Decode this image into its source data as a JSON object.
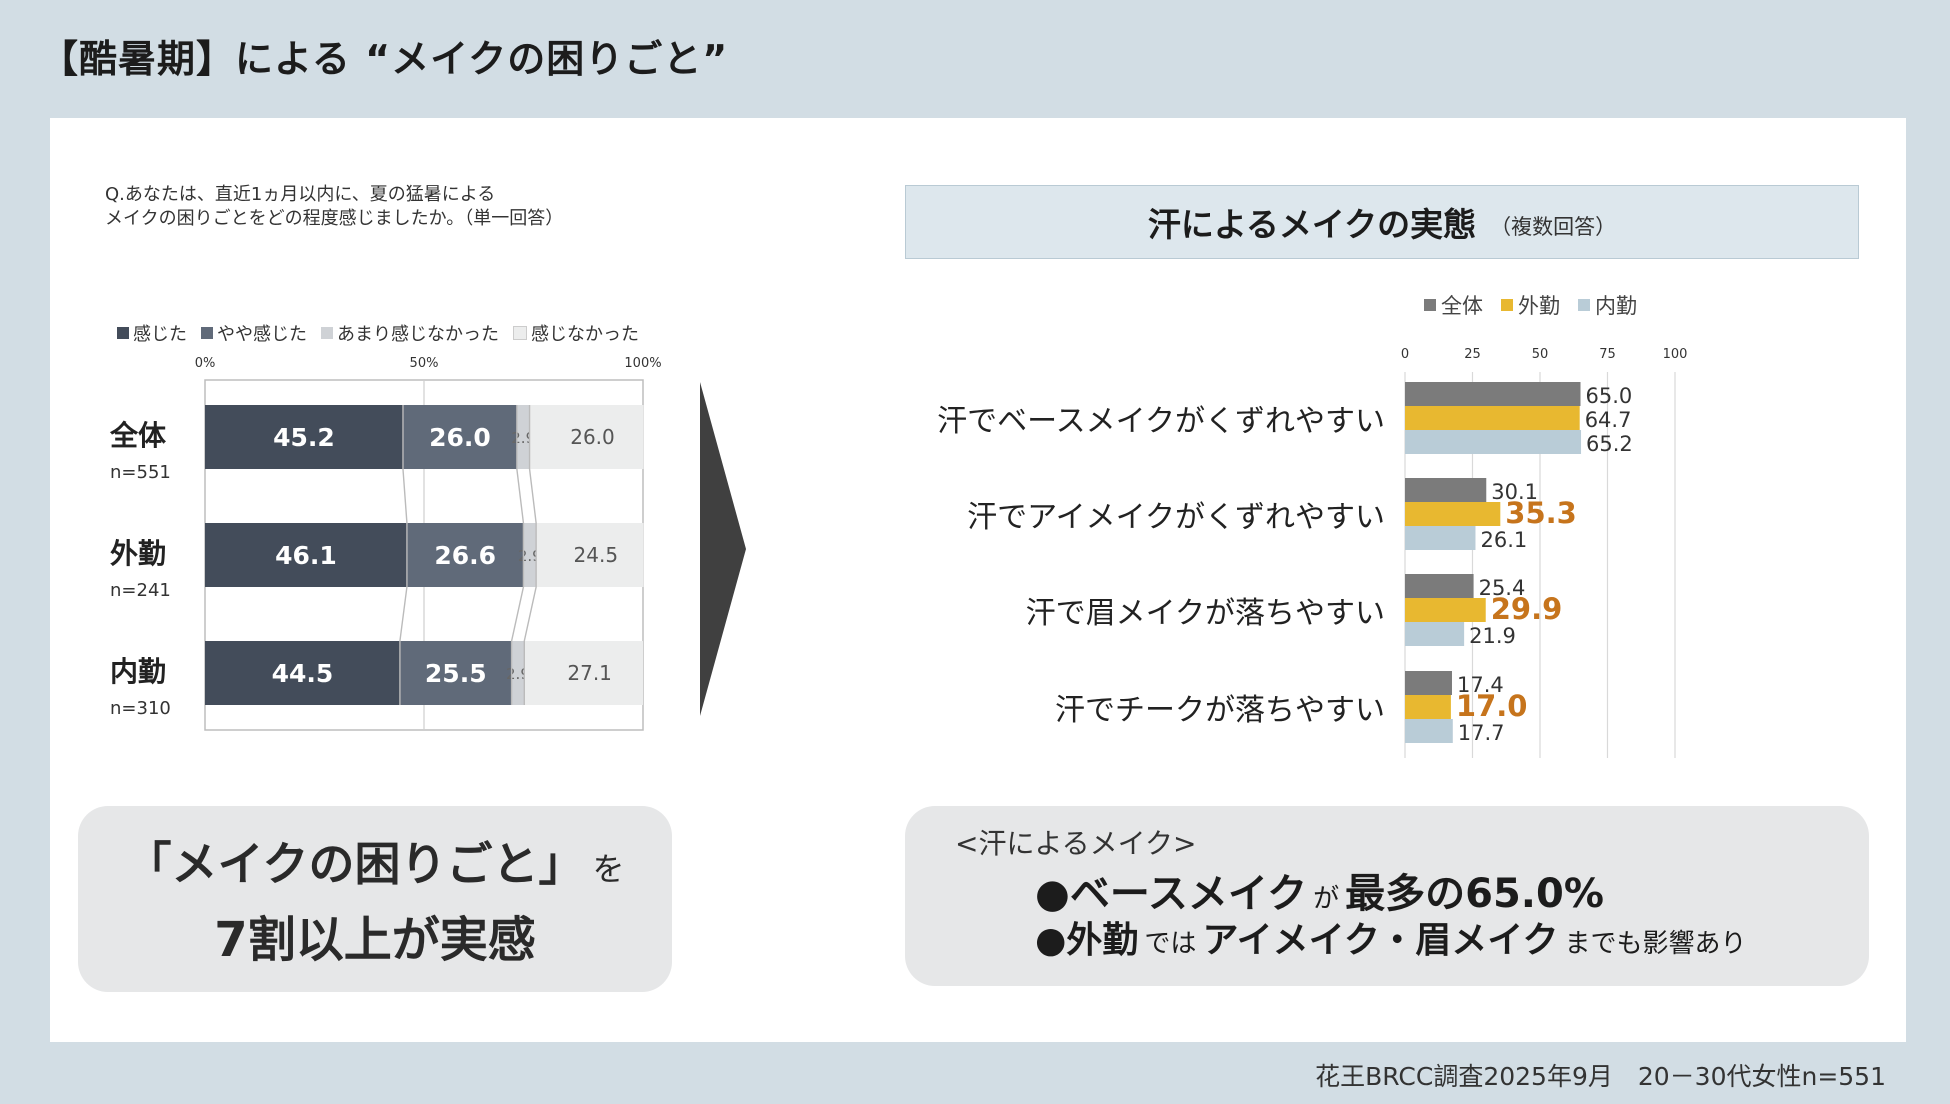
{
  "page_title": "【酷暑期】による “メイクの困りごと”",
  "source_note": "花王BRCC調査2025年9月　20－30代女性n=551",
  "colors": {
    "stack": [
      "#434c5a",
      "#606a79",
      "#cfd2d6",
      "#eceded"
    ],
    "total": "#7b7b7b",
    "outside": "#e8b830",
    "inside": "#b9ccd7",
    "highlight": "#c6741c"
  },
  "left_chart": {
    "question": "Q.あなたは、直近1ヵ月以内に、夏の猛暑による\nメイクの困りごとをどの程度感じましたか。（単一回答）",
    "legend": [
      "感じた",
      "やや感じた",
      "あまり感じなかった",
      "感じなかった"
    ],
    "axis_ticks": [
      "0%",
      "50%",
      "100%"
    ]
  },
  "right_chart": {
    "header_title": "汗によるメイクの実態",
    "header_sub": "（複数回答）",
    "legend": [
      "全体",
      "外勤",
      "内勤"
    ],
    "axis_ticks": [
      "0",
      "25",
      "50",
      "75",
      "100"
    ]
  },
  "chart_data": [
    {
      "type": "bar",
      "orientation": "horizontal",
      "stacked": true,
      "categories": [
        "全体",
        "外勤",
        "内勤"
      ],
      "category_sublabels": [
        "n=551",
        "n=241",
        "n=310"
      ],
      "xlim": [
        0,
        100
      ],
      "series": [
        {
          "name": "感じた",
          "values": [
            45.2,
            46.1,
            44.5
          ]
        },
        {
          "name": "やや感じた",
          "values": [
            26.0,
            26.6,
            25.5
          ]
        },
        {
          "name": "あまり感じなかった",
          "values": [
            2.9,
            2.9,
            2.9
          ]
        },
        {
          "name": "感じなかった",
          "values": [
            26.0,
            24.5,
            27.1
          ]
        }
      ]
    },
    {
      "type": "bar",
      "orientation": "horizontal",
      "categories": [
        "汗でベースメイクがくずれやすい",
        "汗でアイメイクがくずれやすい",
        "汗で眉メイクが落ちやすい",
        "汗でチークが落ちやすい"
      ],
      "xlim": [
        0,
        100
      ],
      "series": [
        {
          "name": "全体",
          "values": [
            65.0,
            30.1,
            25.4,
            17.4
          ]
        },
        {
          "name": "外勤",
          "values": [
            64.7,
            35.3,
            29.9,
            17.0
          ]
        },
        {
          "name": "内勤",
          "values": [
            65.2,
            26.1,
            21.9,
            17.7
          ]
        }
      ]
    }
  ],
  "summary_left": {
    "line1": "「メイクの困りごと」",
    "line1_suffix": "を",
    "line2": "7割以上が実感"
  },
  "summary_right": {
    "heading": "<汗によるメイク>",
    "b1_a": "●ベースメイク",
    "b1_b": "が",
    "b1_c": "最多の65.0%",
    "b2_a": "●外勤",
    "b2_b": "では",
    "b2_c": "アイメイク・眉メイク",
    "b2_d": "までも影響あり"
  }
}
